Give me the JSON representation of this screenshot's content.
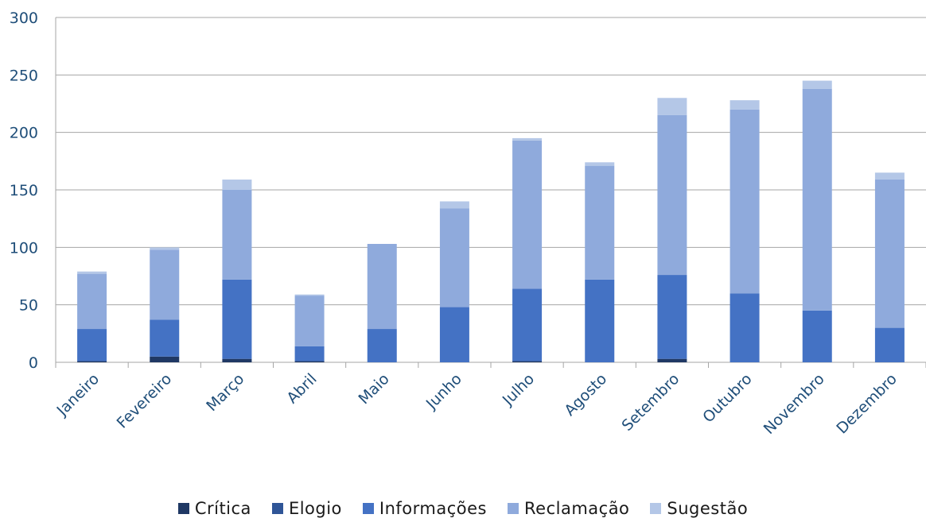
{
  "chart_data": {
    "type": "bar",
    "stacked": true,
    "title": "",
    "xlabel": "",
    "ylabel": "",
    "ylim": [
      0,
      300
    ],
    "yticks": [
      0,
      50,
      100,
      150,
      200,
      250,
      300
    ],
    "grid": true,
    "legend_position": "bottom",
    "categories": [
      "Janeiro",
      "Fevereiro",
      "Março",
      "Abril",
      "Maio",
      "Junho",
      "Julho",
      "Agosto",
      "Setembro",
      "Outubro",
      "Novembro",
      "Dezembro"
    ],
    "series": [
      {
        "name": "Crítica",
        "color": "#1F3864",
        "values": [
          1,
          5,
          3,
          1,
          0,
          0,
          1,
          0,
          3,
          0,
          0,
          0
        ]
      },
      {
        "name": "Elogio",
        "color": "#2F5597",
        "values": [
          0,
          0,
          0,
          0,
          0,
          0,
          0,
          0,
          0,
          0,
          0,
          0
        ]
      },
      {
        "name": "Informações",
        "color": "#4472C4",
        "values": [
          28,
          32,
          69,
          13,
          29,
          48,
          63,
          72,
          73,
          60,
          45,
          30
        ]
      },
      {
        "name": "Reclamação",
        "color": "#8FAADC",
        "values": [
          48,
          61,
          78,
          44,
          74,
          86,
          129,
          99,
          139,
          160,
          193,
          129
        ]
      },
      {
        "name": "Sugestão",
        "color": "#B4C7E7",
        "values": [
          2,
          2,
          9,
          1,
          0,
          6,
          2,
          3,
          15,
          8,
          7,
          6
        ]
      }
    ]
  }
}
